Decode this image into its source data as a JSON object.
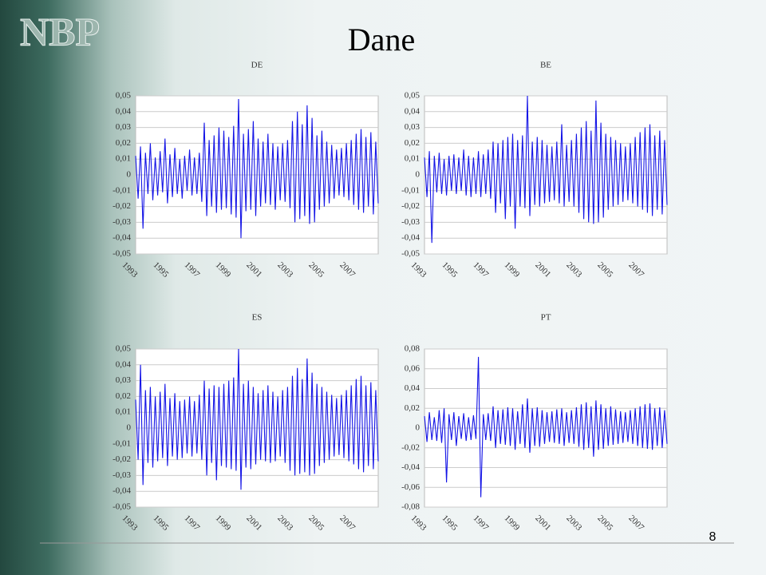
{
  "header": {
    "logo": "NBP",
    "title": "Dane"
  },
  "page_number": "8",
  "chart_data": [
    {
      "type": "line",
      "title": "DE",
      "color": "#1414e6",
      "xlim": [
        1993,
        2008.6
      ],
      "xticks": [
        1993,
        1995,
        1997,
        1999,
        2001,
        2003,
        2005,
        2007
      ],
      "ylim": [
        -0.05,
        0.05
      ],
      "yticks": [
        {
          "value": 0.05,
          "label": "0,05"
        },
        {
          "value": 0.04,
          "label": "0,04"
        },
        {
          "value": 0.03,
          "label": "0,03"
        },
        {
          "value": 0.02,
          "label": "0,02"
        },
        {
          "value": 0.01,
          "label": "0,01"
        },
        0,
        {
          "value": -0.01,
          "label": "-0,01"
        },
        {
          "value": -0.02,
          "label": "-0,02"
        },
        {
          "value": -0.03,
          "label": "-0,03"
        },
        {
          "value": -0.04,
          "label": "-0,04"
        },
        {
          "value": -0.05,
          "label": "-0,05"
        }
      ],
      "grid": true,
      "values": [
        0.012,
        -0.015,
        0.018,
        -0.034,
        0.014,
        -0.012,
        0.02,
        -0.016,
        0.011,
        -0.013,
        0.015,
        -0.011,
        0.023,
        -0.018,
        0.013,
        -0.014,
        0.017,
        -0.012,
        0.01,
        -0.015,
        0.012,
        -0.01,
        0.016,
        -0.013,
        0.011,
        -0.012,
        0.014,
        -0.017,
        0.033,
        -0.026,
        0.022,
        -0.02,
        0.025,
        -0.024,
        0.03,
        -0.022,
        0.028,
        -0.021,
        0.024,
        -0.025,
        0.031,
        -0.027,
        0.048,
        -0.04,
        0.026,
        -0.023,
        0.029,
        -0.022,
        0.034,
        -0.026,
        0.023,
        -0.02,
        0.021,
        -0.018,
        0.026,
        -0.019,
        0.02,
        -0.022,
        0.018,
        -0.016,
        0.02,
        -0.017,
        0.022,
        -0.021,
        0.034,
        -0.03,
        0.04,
        -0.028,
        0.032,
        -0.026,
        0.044,
        -0.031,
        0.036,
        -0.03,
        0.025,
        -0.022,
        0.028,
        -0.02,
        0.021,
        -0.018,
        0.019,
        -0.015,
        0.016,
        -0.013,
        0.017,
        -0.014,
        0.02,
        -0.016,
        0.022,
        -0.019,
        0.026,
        -0.022,
        0.029,
        -0.024,
        0.024,
        -0.02,
        0.027,
        -0.025,
        0.021,
        -0.018
      ]
    },
    {
      "type": "line",
      "title": "BE",
      "color": "#1414e6",
      "xlim": [
        1993,
        2008.6
      ],
      "xticks": [
        1993,
        1995,
        1997,
        1999,
        2001,
        2003,
        2005,
        2007
      ],
      "ylim": [
        -0.05,
        0.05
      ],
      "yticks": [
        {
          "value": 0.05,
          "label": "0,05"
        },
        {
          "value": 0.04,
          "label": "0,04"
        },
        {
          "value": 0.03,
          "label": "0,03"
        },
        {
          "value": 0.02,
          "label": "0,02"
        },
        {
          "value": 0.01,
          "label": "0,01"
        },
        0,
        {
          "value": -0.01,
          "label": "-0,01"
        },
        {
          "value": -0.02,
          "label": "-0,02"
        },
        {
          "value": -0.03,
          "label": "-0,03"
        },
        {
          "value": -0.04,
          "label": "-0,04"
        },
        {
          "value": -0.05,
          "label": "-0,05"
        }
      ],
      "grid": true,
      "values": [
        0.011,
        -0.014,
        0.015,
        -0.043,
        0.012,
        -0.011,
        0.014,
        -0.012,
        0.01,
        -0.013,
        0.012,
        -0.01,
        0.013,
        -0.012,
        0.011,
        -0.01,
        0.016,
        -0.013,
        0.012,
        -0.014,
        0.011,
        -0.012,
        0.015,
        -0.014,
        0.013,
        -0.012,
        0.016,
        -0.015,
        0.021,
        -0.024,
        0.02,
        -0.018,
        0.022,
        -0.028,
        0.024,
        -0.02,
        0.026,
        -0.034,
        0.022,
        -0.02,
        0.025,
        -0.021,
        0.05,
        -0.026,
        0.021,
        -0.019,
        0.024,
        -0.02,
        0.022,
        -0.018,
        0.019,
        -0.017,
        0.018,
        -0.016,
        0.021,
        -0.018,
        0.032,
        -0.02,
        0.019,
        -0.017,
        0.022,
        -0.02,
        0.026,
        -0.024,
        0.03,
        -0.028,
        0.034,
        -0.03,
        0.028,
        -0.031,
        0.047,
        -0.03,
        0.033,
        -0.027,
        0.026,
        -0.022,
        0.024,
        -0.02,
        0.022,
        -0.019,
        0.02,
        -0.017,
        0.018,
        -0.016,
        0.02,
        -0.018,
        0.024,
        -0.02,
        0.027,
        -0.022,
        0.03,
        -0.024,
        0.032,
        -0.026,
        0.025,
        -0.022,
        0.028,
        -0.025,
        0.022,
        -0.019
      ]
    },
    {
      "type": "line",
      "title": "ES",
      "color": "#1414e6",
      "xlim": [
        1993,
        2008.6
      ],
      "xticks": [
        1993,
        1995,
        1997,
        1999,
        2001,
        2003,
        2005,
        2007
      ],
      "ylim": [
        -0.05,
        0.05
      ],
      "yticks": [
        {
          "value": 0.05,
          "label": "0,05"
        },
        {
          "value": 0.04,
          "label": "0,04"
        },
        {
          "value": 0.03,
          "label": "0,03"
        },
        {
          "value": 0.02,
          "label": "0,02"
        },
        {
          "value": 0.01,
          "label": "0,01"
        },
        0,
        {
          "value": -0.01,
          "label": "-0,01"
        },
        {
          "value": -0.02,
          "label": "-0,02"
        },
        {
          "value": -0.03,
          "label": "-0,03"
        },
        {
          "value": -0.04,
          "label": "-0,04"
        },
        {
          "value": -0.05,
          "label": "-0,05"
        }
      ],
      "grid": true,
      "values": [
        0.018,
        -0.02,
        0.04,
        -0.036,
        0.024,
        -0.022,
        0.026,
        -0.025,
        0.02,
        -0.021,
        0.023,
        -0.019,
        0.028,
        -0.024,
        0.019,
        -0.018,
        0.022,
        -0.02,
        0.017,
        -0.019,
        0.018,
        -0.016,
        0.02,
        -0.018,
        0.017,
        -0.016,
        0.021,
        -0.02,
        0.03,
        -0.03,
        0.025,
        -0.022,
        0.027,
        -0.033,
        0.026,
        -0.024,
        0.028,
        -0.025,
        0.03,
        -0.026,
        0.032,
        -0.027,
        0.05,
        -0.039,
        0.028,
        -0.025,
        0.03,
        -0.026,
        0.026,
        -0.023,
        0.022,
        -0.02,
        0.024,
        -0.021,
        0.027,
        -0.022,
        0.023,
        -0.021,
        0.02,
        -0.018,
        0.024,
        -0.022,
        0.026,
        -0.027,
        0.033,
        -0.03,
        0.038,
        -0.029,
        0.031,
        -0.028,
        0.044,
        -0.03,
        0.035,
        -0.029,
        0.028,
        -0.024,
        0.026,
        -0.022,
        0.023,
        -0.02,
        0.021,
        -0.018,
        0.019,
        -0.017,
        0.021,
        -0.019,
        0.024,
        -0.021,
        0.027,
        -0.023,
        0.031,
        -0.026,
        0.033,
        -0.028,
        0.027,
        -0.024,
        0.029,
        -0.026,
        0.024,
        -0.021
      ]
    },
    {
      "type": "line",
      "title": "PT",
      "color": "#1414e6",
      "xlim": [
        1993,
        2008.6
      ],
      "xticks": [
        1993,
        1995,
        1997,
        1999,
        2001,
        2003,
        2005,
        2007
      ],
      "ylim": [
        -0.08,
        0.08
      ],
      "yticks": [
        {
          "value": 0.08,
          "label": "0,08"
        },
        {
          "value": 0.06,
          "label": "0,06"
        },
        {
          "value": 0.04,
          "label": "0,04"
        },
        {
          "value": 0.02,
          "label": "0,02"
        },
        0,
        {
          "value": -0.02,
          "label": "-0,02"
        },
        {
          "value": -0.04,
          "label": "-0,04"
        },
        {
          "value": -0.06,
          "label": "-0,06"
        },
        {
          "value": -0.08,
          "label": "-0,08"
        }
      ],
      "grid": true,
      "values": [
        0.012,
        -0.014,
        0.016,
        -0.012,
        0.011,
        -0.013,
        0.018,
        -0.015,
        0.02,
        -0.055,
        0.014,
        -0.012,
        0.016,
        -0.018,
        0.012,
        -0.011,
        0.015,
        -0.013,
        0.011,
        -0.012,
        0.013,
        -0.011,
        0.072,
        -0.07,
        0.014,
        -0.012,
        0.015,
        -0.013,
        0.022,
        -0.02,
        0.018,
        -0.016,
        0.019,
        -0.017,
        0.021,
        -0.018,
        0.02,
        -0.022,
        0.017,
        -0.016,
        0.024,
        -0.02,
        0.03,
        -0.025,
        0.02,
        -0.018,
        0.021,
        -0.019,
        0.018,
        -0.016,
        0.016,
        -0.014,
        0.017,
        -0.015,
        0.019,
        -0.016,
        0.02,
        -0.018,
        0.016,
        -0.015,
        0.018,
        -0.016,
        0.021,
        -0.019,
        0.024,
        -0.022,
        0.026,
        -0.02,
        0.022,
        -0.029,
        0.028,
        -0.022,
        0.024,
        -0.021,
        0.02,
        -0.018,
        0.022,
        -0.017,
        0.019,
        -0.016,
        0.017,
        -0.015,
        0.016,
        -0.014,
        0.018,
        -0.016,
        0.02,
        -0.018,
        0.022,
        -0.02,
        0.024,
        -0.021,
        0.025,
        -0.022,
        0.02,
        -0.018,
        0.021,
        -0.02,
        0.018,
        -0.016
      ]
    }
  ]
}
